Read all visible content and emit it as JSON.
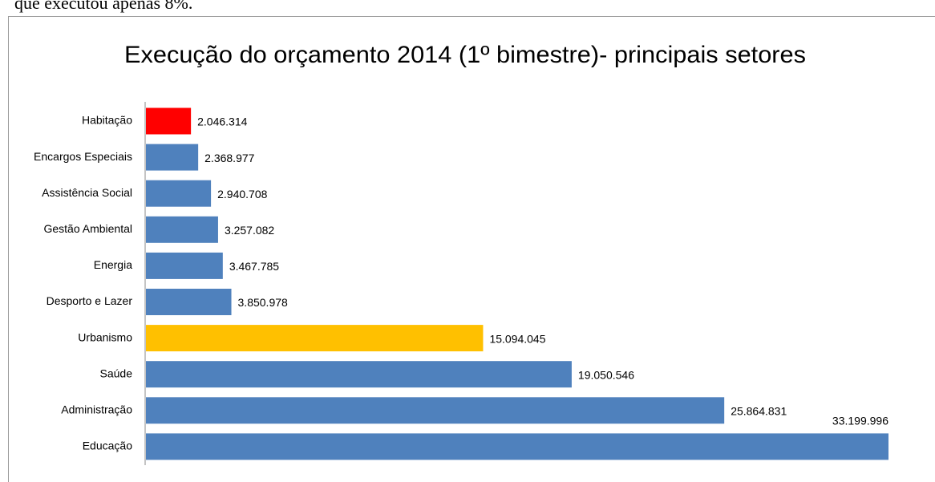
{
  "document_text": "que executou apenas 8%.",
  "chart_data": {
    "type": "hbar",
    "title": "Execução do orçamento 2014 (1º bimestre)- principais setores",
    "categories": [
      "Habitação",
      "Encargos Especiais",
      "Assistência Social",
      "Gestão Ambiental",
      "Energia",
      "Desporto e Lazer",
      "Urbanismo",
      "Saúde",
      "Administração",
      "Educação"
    ],
    "values": [
      2046314,
      2368977,
      2940708,
      3257082,
      3467785,
      3850978,
      15094045,
      19050546,
      25864831,
      33199996
    ],
    "value_labels": [
      "2.046.314",
      "2.368.977",
      "2.940.708",
      "3.257.082",
      "3.467.785",
      "3.850.978",
      "15.094.045",
      "19.050.546",
      "25.864.831",
      "33.199.996"
    ],
    "colors": [
      "#ff0000",
      "#4f81bd",
      "#4f81bd",
      "#4f81bd",
      "#4f81bd",
      "#4f81bd",
      "#ffc000",
      "#4f81bd",
      "#4f81bd",
      "#4f81bd"
    ]
  }
}
